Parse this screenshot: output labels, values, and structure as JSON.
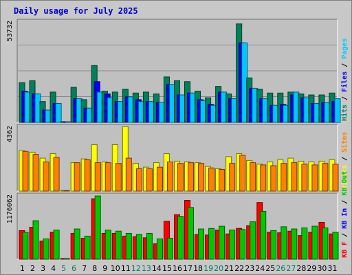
{
  "title": "Daily usage for July 2025",
  "chart_data": [
    {
      "panel": "pages-files-hits",
      "type": "bar",
      "ymax_label": "53732",
      "ymax": 53732,
      "categories": [
        "1",
        "2",
        "3",
        "4",
        "5",
        "6",
        "7",
        "8",
        "9",
        "10",
        "11",
        "12",
        "13",
        "14",
        "15",
        "16",
        "17",
        "18",
        "19",
        "20",
        "21",
        "22",
        "23",
        "24",
        "25",
        "26",
        "27",
        "28",
        "29",
        "30",
        "31"
      ],
      "weekend_days": [
        "5",
        "6",
        "12",
        "13",
        "19",
        "20",
        "26",
        "27"
      ],
      "legend": [
        {
          "label": "Hits",
          "color": "#00805c"
        },
        {
          "sep": "/"
        },
        {
          "label": "Files",
          "color": "#0000ff"
        },
        {
          "sep": "/"
        },
        {
          "label": "Pages",
          "color": "#00c8ff"
        }
      ],
      "series": [
        {
          "name": "Hits",
          "color": "#00805c",
          "values": [
            21000,
            22000,
            11000,
            16000,
            0,
            18500,
            12000,
            30000,
            16500,
            16000,
            17500,
            15500,
            16000,
            15000,
            24000,
            22000,
            21500,
            16500,
            13000,
            19000,
            15000,
            52000,
            23500,
            17500,
            15500,
            15500,
            16000,
            15000,
            14500,
            14500,
            15500
          ]
        },
        {
          "name": "Files",
          "color": "#0000ff",
          "values": [
            16500,
            15000,
            6500,
            10000,
            0,
            12500,
            7500,
            21500,
            15000,
            11000,
            13500,
            12000,
            11000,
            10500,
            20000,
            14500,
            15500,
            12000,
            9500,
            16000,
            12500,
            42000,
            18000,
            12500,
            9000,
            9500,
            14500,
            13000,
            10000,
            10500,
            11000
          ]
        },
        {
          "name": "Pages",
          "color": "#00c8ff",
          "values": [
            16000,
            15000,
            6500,
            10000,
            0,
            12500,
            7500,
            16000,
            13000,
            11000,
            13500,
            11000,
            11000,
            10500,
            20000,
            14500,
            15500,
            11500,
            9000,
            16000,
            12500,
            42000,
            18000,
            12500,
            9000,
            9000,
            16000,
            13000,
            10000,
            10500,
            12500
          ]
        }
      ]
    },
    {
      "panel": "visits-sites",
      "type": "bar",
      "ymax_label": "4362",
      "ymax": 4362,
      "legend": [
        {
          "label": "Visits",
          "color": "#ffff00"
        },
        {
          "sep": "/"
        },
        {
          "label": "Sites",
          "color": "#ff8000"
        }
      ],
      "series": [
        {
          "name": "Visits",
          "color": "#ffff00",
          "values": [
            2700,
            2600,
            2200,
            2500,
            0,
            1900,
            2150,
            3100,
            1950,
            3100,
            4300,
            1850,
            1600,
            1900,
            2500,
            2000,
            1950,
            1900,
            1650,
            1500,
            2300,
            2500,
            2050,
            1800,
            1950,
            2100,
            2200,
            2000,
            1950,
            2000,
            2100
          ]
        },
        {
          "name": "Sites",
          "color": "#ff8000",
          "values": [
            2650,
            2450,
            1950,
            2250,
            0,
            1900,
            2100,
            1900,
            1900,
            1850,
            2200,
            1500,
            1500,
            1600,
            1950,
            1850,
            1900,
            1850,
            1550,
            1450,
            1850,
            2400,
            1900,
            1750,
            1700,
            1850,
            1900,
            1800,
            1750,
            1850,
            1800
          ]
        }
      ]
    },
    {
      "panel": "kbin-kbout-kbf",
      "type": "bar",
      "ymax_label": "1176062",
      "ymax": 1176062,
      "legend": [
        {
          "label": "KB F",
          "color": "#ff0000"
        },
        {
          "sep": "/"
        },
        {
          "label": "KB In",
          "color": "#0000ff"
        },
        {
          "sep": "/"
        },
        {
          "label": "KB Out",
          "color": "#00c800"
        }
      ],
      "series": [
        {
          "name": "KB F",
          "color": "#ff0000",
          "values": [
            520000,
            580000,
            330000,
            490000,
            0,
            470000,
            380000,
            1100000,
            470000,
            470000,
            420000,
            410000,
            390000,
            280000,
            690000,
            810000,
            1070000,
            450000,
            440000,
            530000,
            460000,
            560000,
            610000,
            1030000,
            490000,
            480000,
            510000,
            430000,
            490000,
            670000,
            460000
          ]
        },
        {
          "name": "KB Out",
          "color": "#00c800",
          "values": [
            490000,
            700000,
            370000,
            530000,
            0,
            550000,
            420000,
            1150000,
            530000,
            510000,
            470000,
            450000,
            470000,
            370000,
            380000,
            780000,
            940000,
            550000,
            560000,
            600000,
            530000,
            540000,
            680000,
            870000,
            520000,
            590000,
            550000,
            570000,
            600000,
            570000,
            490000
          ]
        }
      ]
    }
  ]
}
